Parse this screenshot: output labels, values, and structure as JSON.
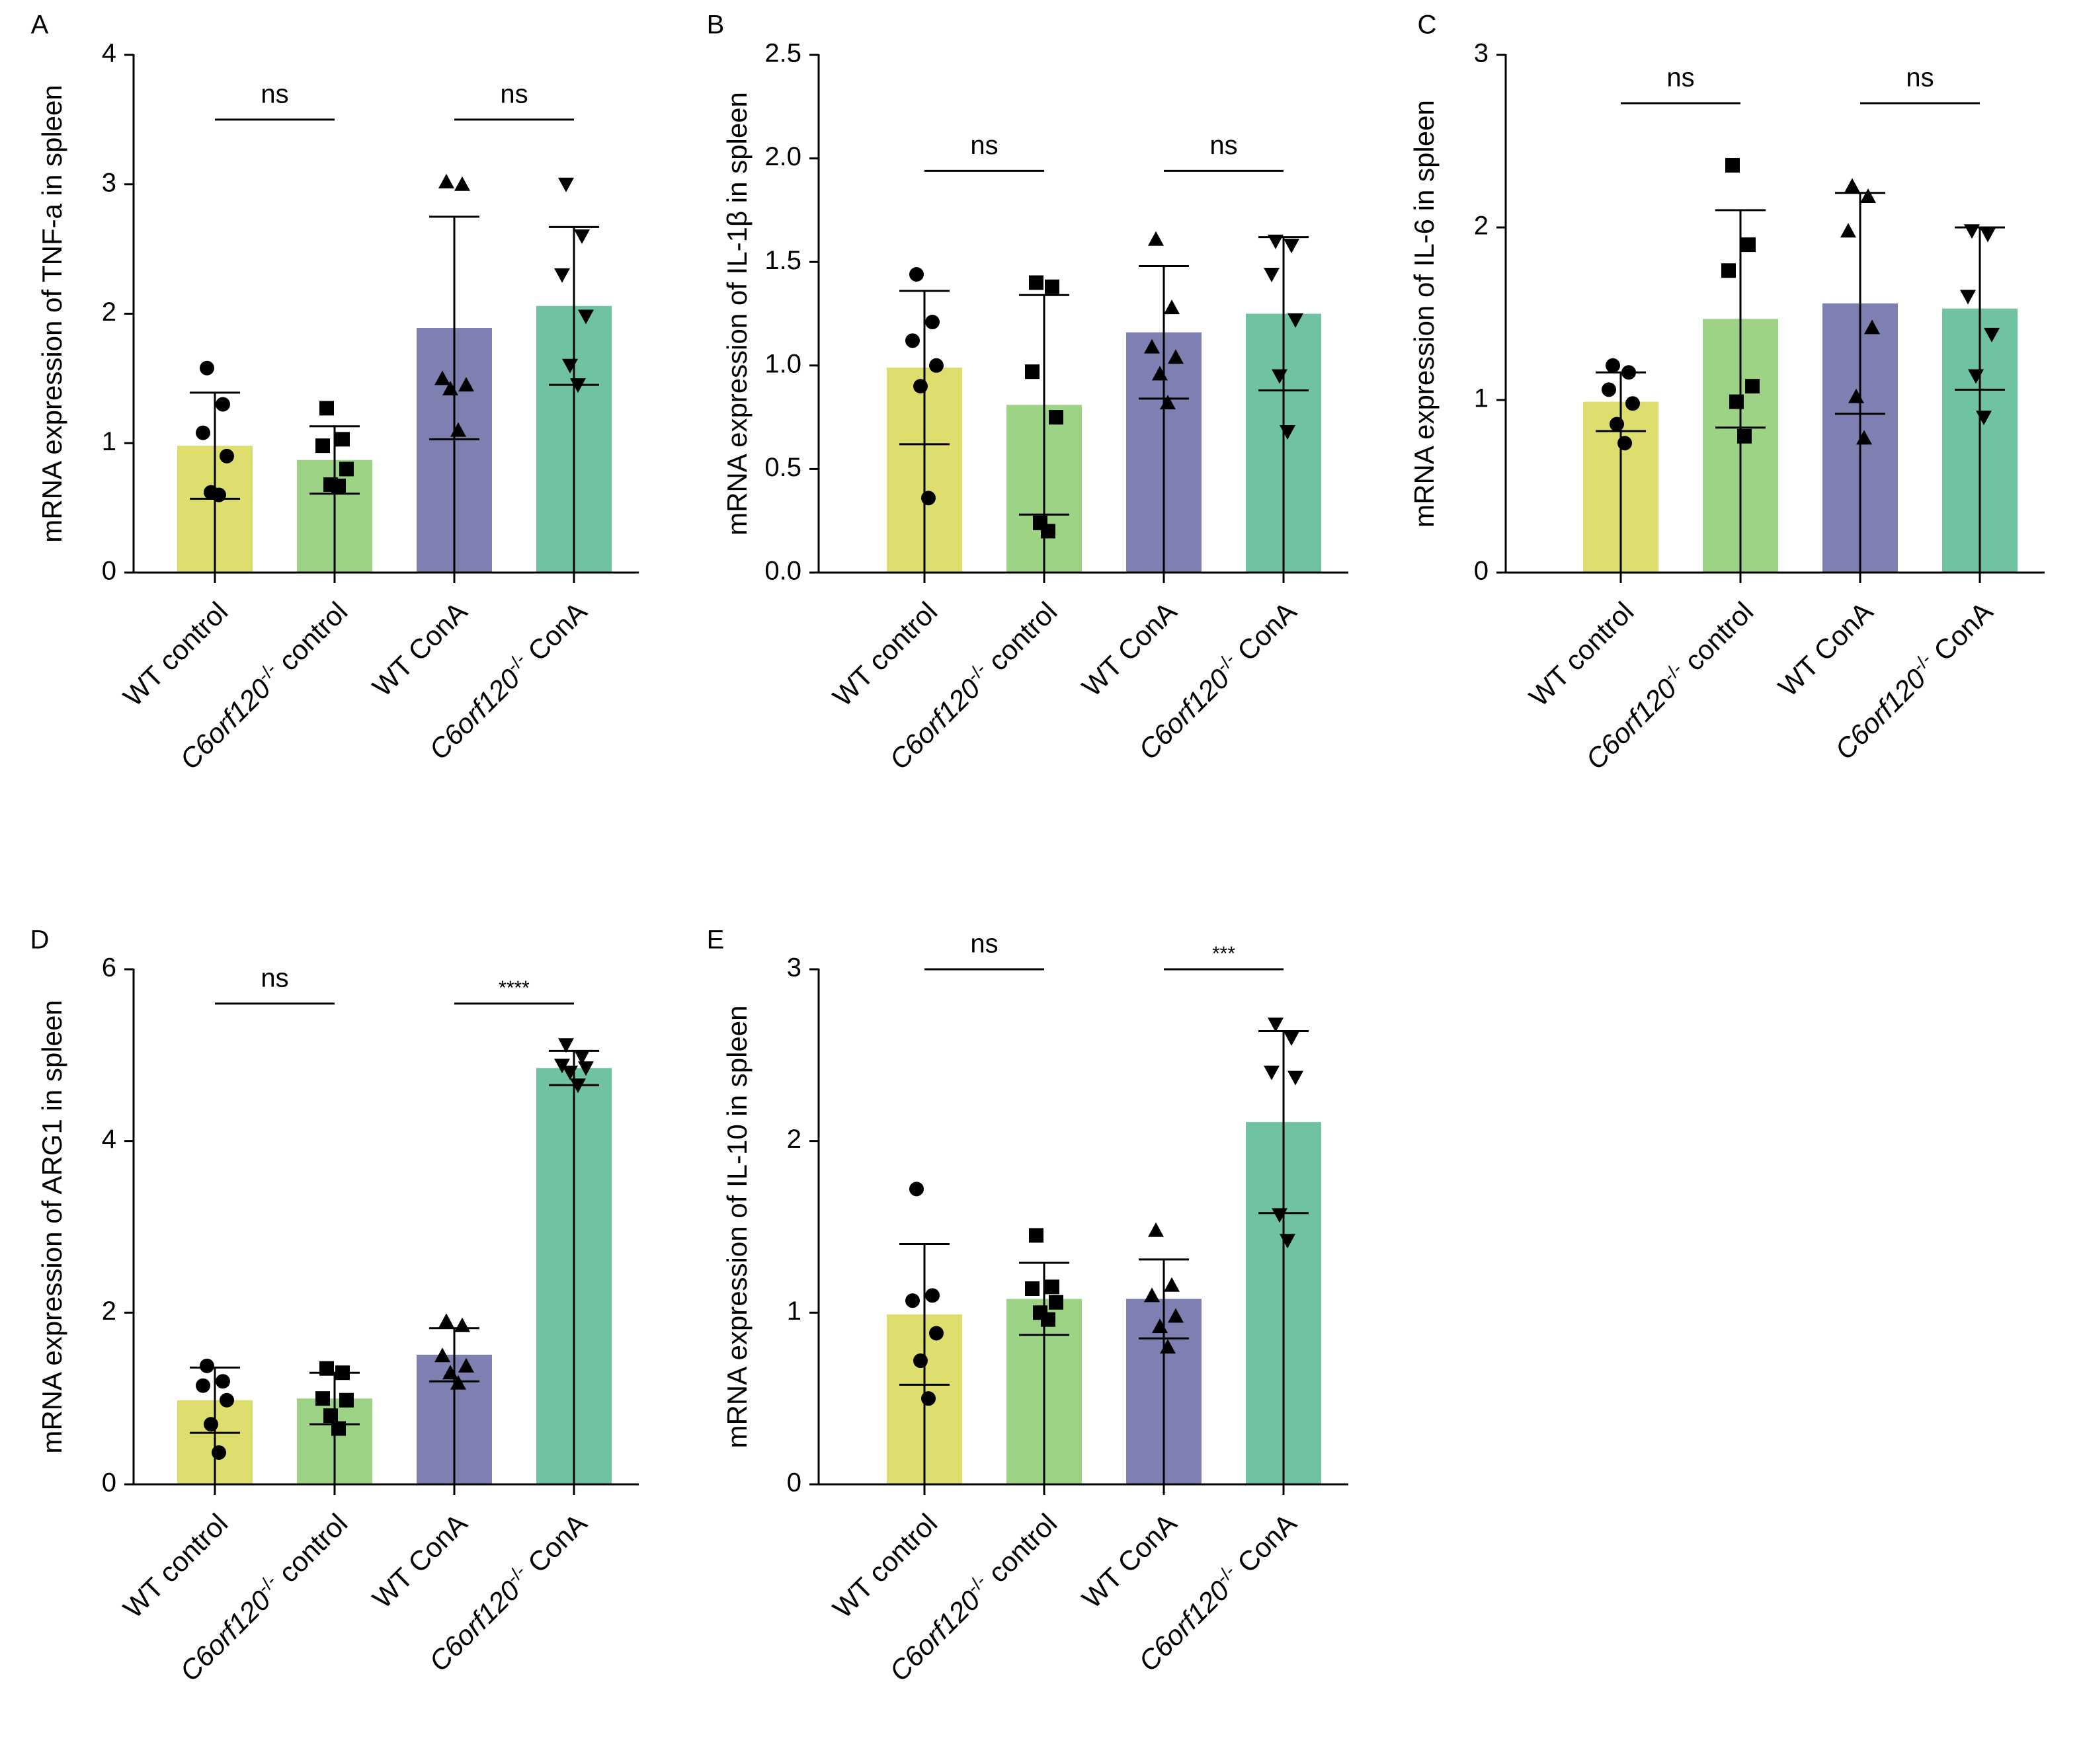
{
  "chart_data": [
    {
      "type": "bar",
      "panel": "A",
      "ylabel": "mRNA expression of TNF-a in spleen",
      "ylim": [
        0,
        4
      ],
      "yticks": [
        0,
        1,
        2,
        3,
        4
      ],
      "categories": [
        {
          "prefix": "WT",
          "suffix": " control"
        },
        {
          "prefix": "C6orf120",
          "sup": "-/-",
          "suffix": " control"
        },
        {
          "prefix": "WT",
          "suffix": " ConA"
        },
        {
          "prefix": "C6orf120",
          "sup": "-/-",
          "suffix": " ConA"
        }
      ],
      "series": [
        {
          "mean": 0.98,
          "sd": 0.41,
          "color": "#dede6f",
          "marker": "circle",
          "points": [
            1.58,
            1.3,
            1.08,
            0.9,
            0.62,
            0.6
          ]
        },
        {
          "mean": 0.87,
          "sd": 0.26,
          "color": "#9cd385",
          "marker": "square",
          "points": [
            1.27,
            1.03,
            0.98,
            0.8,
            0.68,
            0.67
          ]
        },
        {
          "mean": 1.89,
          "sd": 0.86,
          "color": "#7e80b1",
          "marker": "triangle-up",
          "points": [
            3.02,
            3.0,
            1.5,
            1.45,
            1.42,
            1.1
          ]
        },
        {
          "mean": 2.06,
          "sd": 0.61,
          "color": "#6fc3a1",
          "marker": "triangle-down",
          "points": [
            3.0,
            2.6,
            2.3,
            1.98,
            1.6,
            1.45
          ]
        }
      ],
      "comparisons": [
        {
          "groups": [
            0,
            1
          ],
          "label": "ns",
          "y": 3.5
        },
        {
          "groups": [
            2,
            3
          ],
          "label": "ns",
          "y": 3.5
        }
      ]
    },
    {
      "type": "bar",
      "panel": "B",
      "ylabel": "mRNA expression of IL-1β in spleen",
      "ylim": [
        0,
        2.5
      ],
      "yticks": [
        0,
        0.5,
        1.0,
        1.5,
        2.0,
        2.5
      ],
      "categories": [
        {
          "prefix": "WT",
          "suffix": " control"
        },
        {
          "prefix": "C6orf120",
          "sup": "-/-",
          "suffix": " control"
        },
        {
          "prefix": "WT",
          "suffix": " ConA"
        },
        {
          "prefix": "C6orf120",
          "sup": "-/-",
          "suffix": " ConA"
        }
      ],
      "series": [
        {
          "mean": 0.99,
          "sd": 0.37,
          "color": "#dede6f",
          "marker": "circle",
          "points": [
            1.44,
            1.21,
            1.12,
            1.0,
            0.9,
            0.36
          ]
        },
        {
          "mean": 0.81,
          "sd": 0.53,
          "color": "#9cd385",
          "marker": "square",
          "points": [
            1.4,
            1.38,
            0.97,
            0.75,
            0.24,
            0.2
          ]
        },
        {
          "mean": 1.16,
          "sd": 0.32,
          "color": "#7e80b1",
          "marker": "triangle-up",
          "points": [
            1.61,
            1.28,
            1.09,
            1.04,
            0.96,
            0.82
          ]
        },
        {
          "mean": 1.25,
          "sd": 0.37,
          "color": "#6fc3a1",
          "marker": "triangle-down",
          "points": [
            1.6,
            1.58,
            1.44,
            1.22,
            0.95,
            0.68
          ]
        }
      ],
      "comparisons": [
        {
          "groups": [
            0,
            1
          ],
          "label": "ns",
          "y": 1.94
        },
        {
          "groups": [
            2,
            3
          ],
          "label": "ns",
          "y": 1.94
        }
      ]
    },
    {
      "type": "bar",
      "panel": "C",
      "ylabel": "mRNA expression of IL-6 in spleen",
      "ylim": [
        0,
        3
      ],
      "yticks": [
        0,
        1,
        2,
        3
      ],
      "categories": [
        {
          "prefix": "WT",
          "suffix": " control"
        },
        {
          "prefix": "C6orf120",
          "sup": "-/-",
          "suffix": " control"
        },
        {
          "prefix": "WT",
          "suffix": " ConA"
        },
        {
          "prefix": "C6orf120",
          "sup": "-/-",
          "suffix": " ConA"
        }
      ],
      "series": [
        {
          "mean": 0.99,
          "sd": 0.17,
          "color": "#dede6f",
          "marker": "circle",
          "points": [
            1.2,
            1.16,
            1.06,
            0.98,
            0.86,
            0.75
          ]
        },
        {
          "mean": 1.47,
          "sd": 0.63,
          "color": "#9cd385",
          "marker": "square",
          "points": [
            2.36,
            1.9,
            1.75,
            1.08,
            0.99,
            0.79
          ]
        },
        {
          "mean": 1.56,
          "sd": 0.64,
          "color": "#7e80b1",
          "marker": "triangle-up",
          "points": [
            2.24,
            2.18,
            1.98,
            1.42,
            1.02,
            0.78
          ]
        },
        {
          "mean": 1.53,
          "sd": 0.47,
          "color": "#6fc3a1",
          "marker": "triangle-down",
          "points": [
            1.98,
            1.96,
            1.6,
            1.38,
            1.14,
            0.9
          ]
        }
      ],
      "comparisons": [
        {
          "groups": [
            0,
            1
          ],
          "label": "ns",
          "y": 2.72
        },
        {
          "groups": [
            2,
            3
          ],
          "label": "ns",
          "y": 2.72
        }
      ]
    },
    {
      "type": "bar",
      "panel": "D",
      "ylabel": "mRNA expression of ARG1 in spleen",
      "ylim": [
        0,
        6
      ],
      "yticks": [
        0,
        2,
        4,
        6
      ],
      "categories": [
        {
          "prefix": "WT",
          "suffix": " control"
        },
        {
          "prefix": "C6orf120",
          "sup": "-/-",
          "suffix": " control"
        },
        {
          "prefix": "WT",
          "suffix": " ConA"
        },
        {
          "prefix": "C6orf120",
          "sup": "-/-",
          "suffix": " ConA"
        }
      ],
      "series": [
        {
          "mean": 0.98,
          "sd": 0.38,
          "color": "#dede6f",
          "marker": "circle",
          "points": [
            1.38,
            1.2,
            1.15,
            0.98,
            0.7,
            0.37
          ]
        },
        {
          "mean": 1.0,
          "sd": 0.3,
          "color": "#9cd385",
          "marker": "square",
          "points": [
            1.35,
            1.3,
            1.0,
            0.98,
            0.8,
            0.65
          ]
        },
        {
          "mean": 1.51,
          "sd": 0.31,
          "color": "#7e80b1",
          "marker": "triangle-up",
          "points": [
            1.9,
            1.85,
            1.5,
            1.38,
            1.3,
            1.18
          ]
        },
        {
          "mean": 4.85,
          "sd": 0.2,
          "color": "#6fc3a1",
          "marker": "triangle-down",
          "points": [
            5.12,
            4.98,
            4.88,
            4.85,
            4.8,
            4.65
          ]
        }
      ],
      "comparisons": [
        {
          "groups": [
            0,
            1
          ],
          "label": "ns",
          "y": 5.6
        },
        {
          "groups": [
            2,
            3
          ],
          "label": "****",
          "y": 5.6
        }
      ]
    },
    {
      "type": "bar",
      "panel": "E",
      "ylabel": "mRNA expression of IL-10 in spleen",
      "ylim": [
        0,
        3
      ],
      "yticks": [
        0,
        1,
        2,
        3
      ],
      "categories": [
        {
          "prefix": "WT",
          "suffix": " control"
        },
        {
          "prefix": "C6orf120",
          "sup": "-/-",
          "suffix": " control"
        },
        {
          "prefix": "WT",
          "suffix": " ConA"
        },
        {
          "prefix": "C6orf120",
          "sup": "-/-",
          "suffix": " ConA"
        }
      ],
      "series": [
        {
          "mean": 0.99,
          "sd": 0.41,
          "color": "#dede6f",
          "marker": "circle",
          "points": [
            1.72,
            1.1,
            1.07,
            0.88,
            0.72,
            0.5
          ]
        },
        {
          "mean": 1.08,
          "sd": 0.21,
          "color": "#9cd385",
          "marker": "square",
          "points": [
            1.45,
            1.15,
            1.14,
            1.06,
            1.0,
            0.96
          ]
        },
        {
          "mean": 1.08,
          "sd": 0.23,
          "color": "#7e80b1",
          "marker": "triangle-up",
          "points": [
            1.48,
            1.16,
            1.1,
            0.98,
            0.92,
            0.8
          ]
        },
        {
          "mean": 2.11,
          "sd": 0.53,
          "color": "#6fc3a1",
          "marker": "triangle-down",
          "points": [
            2.68,
            2.6,
            2.4,
            2.37,
            1.57,
            1.42
          ]
        }
      ],
      "comparisons": [
        {
          "groups": [
            0,
            1
          ],
          "label": "ns",
          "y": 3.0
        },
        {
          "groups": [
            2,
            3
          ],
          "label": "***",
          "y": 3.0
        }
      ]
    }
  ]
}
